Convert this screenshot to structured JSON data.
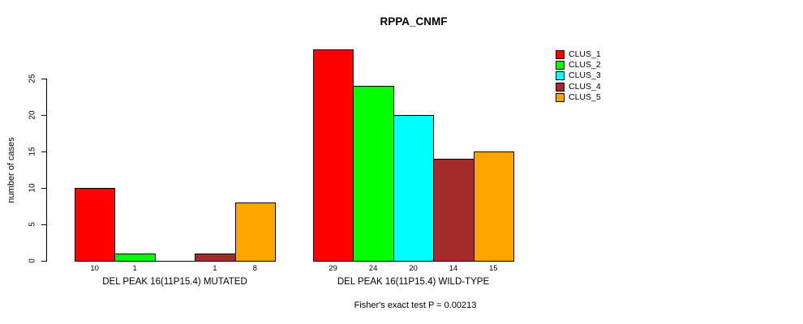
{
  "title": "RPPA_CNMF",
  "y_axis": {
    "label": "number of cases"
  },
  "footer": {
    "annotation": "Fisher's exact test P = 0.00213"
  },
  "chart_data": {
    "type": "bar",
    "title": "RPPA_CNMF",
    "xlabel": "",
    "ylabel": "number of cases",
    "ylim": [
      0,
      29
    ],
    "yticks": [
      0,
      5,
      10,
      15,
      20,
      25
    ],
    "grid": false,
    "legend_position": "top-right",
    "categories": [
      "DEL PEAK 16(11P15.4) MUTATED",
      "DEL PEAK 16(11P15.4) WILD-TYPE"
    ],
    "series": [
      {
        "name": "CLUS_1",
        "color": "#FF0000",
        "values": [
          10,
          29
        ]
      },
      {
        "name": "CLUS_2",
        "color": "#00FF00",
        "values": [
          1,
          24
        ]
      },
      {
        "name": "CLUS_3",
        "color": "#00FFFF",
        "values": [
          0,
          20
        ]
      },
      {
        "name": "CLUS_4",
        "color": "#A52A2A",
        "values": [
          1,
          14
        ]
      },
      {
        "name": "CLUS_5",
        "color": "#FFA500",
        "values": [
          8,
          15
        ]
      }
    ],
    "bar_value_labels": {
      "group_1": [
        "10",
        "1",
        "",
        "1",
        "8"
      ],
      "group_2": [
        "29",
        "24",
        "20",
        "14",
        "15"
      ]
    },
    "annotation": "Fisher's exact test P = 0.00213"
  }
}
